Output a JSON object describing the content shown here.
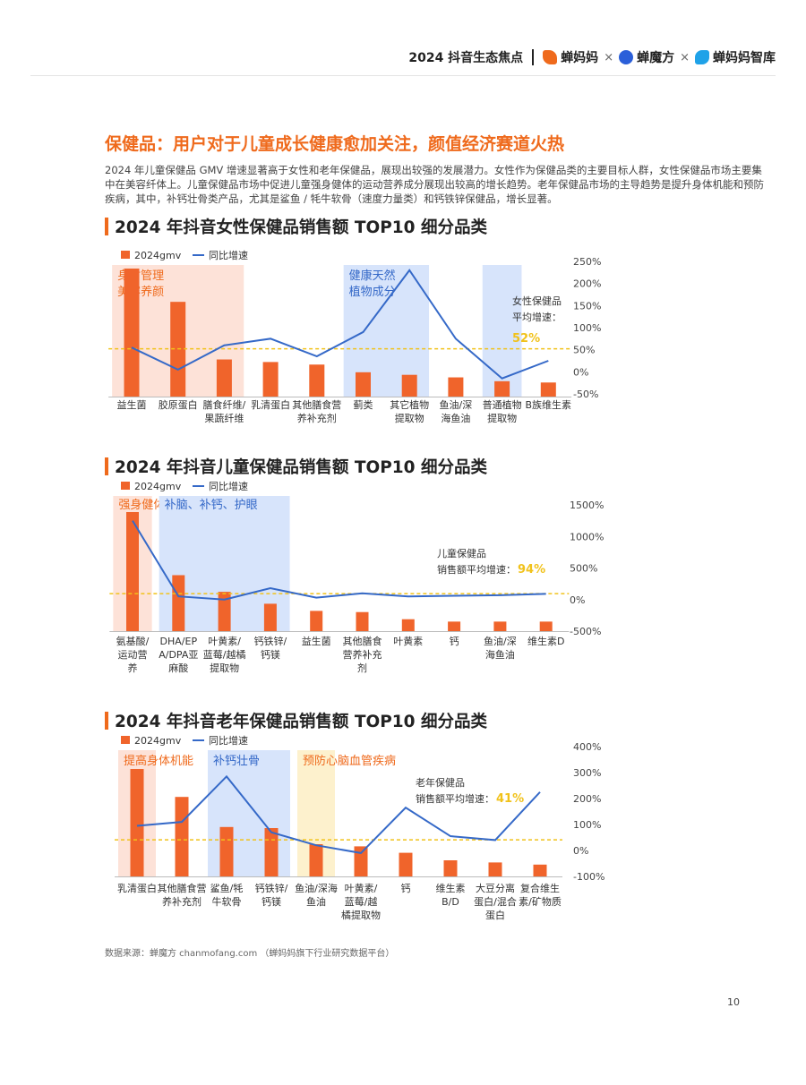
{
  "header": {
    "report": "2024 抖音生态焦点",
    "brands": [
      "蝉妈妈",
      "蝉魔方",
      "蝉妈妈智库"
    ],
    "separator": "×"
  },
  "title": "保健品：用户对于儿童成长健康愈加关注，颜值经济赛道火热",
  "intro": "2024 年儿童保健品 GMV 增速显著高于女性和老年保健品，展现出较强的发展潜力。女性作为保健品类的主要目标人群，女性保健品市场主要集中在美容纤体上。儿童保健品市场中促进儿童强身健体的运动营养成分展现出较高的增长趋势。老年保健品市场的主导趋势是提升身体机能和预防疾病，其中，补钙壮骨类产品，尤其是鲨鱼 / 牦牛软骨（速度力量类）和钙铁锌保健品，增长显著。",
  "source": "数据来源：蝉魔方 chanmofang.com （蝉妈妈旗下行业研究数据平台）",
  "page_number": "10",
  "colors": {
    "accent": "#ef6a1c",
    "bar": "#f0642b",
    "line": "#3569c8",
    "avg": "#f1c21b",
    "zone_orange": "#fde2d8",
    "zone_blue": "#d7e4fb",
    "zone_yellow": "#fdf1cd"
  },
  "chart_data": [
    {
      "type": "bar",
      "title": "2024 年抖音女性保健品销售额 TOP10 细分品类",
      "legend": {
        "bar": "2024gmv",
        "line": "同比增速"
      },
      "categories": [
        "益生菌",
        "胶原蛋白",
        "膳食纤维/果蔬纤维",
        "乳清蛋白",
        "其他膳食营养补充剂",
        "蓟类",
        "其它植物提取物",
        "鱼油/深海鱼油",
        "普通植物提取物",
        "B族维生素"
      ],
      "category_lines": [
        [
          "益生菌"
        ],
        [
          "胶原蛋白"
        ],
        [
          "膳食纤维/",
          "果蔬纤维"
        ],
        [
          "乳清蛋白"
        ],
        [
          "其他膳食营",
          "养补充剂"
        ],
        [
          "蓟类"
        ],
        [
          "其它植物",
          "提取物"
        ],
        [
          "鱼油/深",
          "海鱼油"
        ],
        [
          "普通植物",
          "提取物"
        ],
        [
          "B族维生素"
        ]
      ],
      "bar_relative": [
        1.0,
        0.74,
        0.29,
        0.27,
        0.25,
        0.19,
        0.17,
        0.15,
        0.12,
        0.11
      ],
      "growth": [
        55,
        5,
        60,
        75,
        35,
        90,
        230,
        75,
        -15,
        25
      ],
      "y2_ticks": [
        "250%",
        "200%",
        "150%",
        "100%",
        "50%",
        "0%",
        "-50%"
      ],
      "y2_range": [
        -50,
        250
      ],
      "average": {
        "value": 52,
        "label_lines": [
          "女性保健品",
          "平均增速："
        ],
        "value_label": "52%"
      },
      "zones": [
        {
          "from": 0,
          "to": 2,
          "color": "orange",
          "label_lines": [
            "身材管理",
            "美容养颜"
          ],
          "label_color": "orange"
        },
        {
          "from": 5,
          "to": 6,
          "color": "blue",
          "label_lines": [
            "健康天然",
            "植物成分"
          ],
          "label_color": "blue"
        },
        {
          "from": 8,
          "to": 8,
          "color": "blue",
          "label_lines": [],
          "label_color": "blue"
        }
      ]
    },
    {
      "type": "bar",
      "title": "2024 年抖音儿童保健品销售额 TOP10 细分品类",
      "legend": {
        "bar": "2024gmv",
        "line": "同比增速"
      },
      "categories": [
        "氨基酸/运动营养",
        "DHA/EPA/DPA亚麻酸",
        "叶黄素/蓝莓/越橘提取物",
        "钙铁锌/钙镁",
        "益生菌",
        "其他膳食营养补充剂",
        "叶黄素",
        "钙",
        "鱼油/深海鱼油",
        "维生素D"
      ],
      "category_lines": [
        [
          "氨基酸/",
          "运动营",
          "养"
        ],
        [
          "DHA/EP",
          "A/DPA亚",
          "麻酸"
        ],
        [
          "叶黄素/",
          "蓝莓/越橘",
          "提取物"
        ],
        [
          "钙铁锌/",
          "钙镁"
        ],
        [
          "益生菌"
        ],
        [
          "其他膳食",
          "营养补充",
          "剂"
        ],
        [
          "叶黄素"
        ],
        [
          "钙"
        ],
        [
          "鱼油/深",
          "海鱼油"
        ],
        [
          "维生素D"
        ]
      ],
      "bar_relative": [
        1.0,
        0.47,
        0.33,
        0.23,
        0.17,
        0.16,
        0.1,
        0.08,
        0.08,
        0.08
      ],
      "growth": [
        1250,
        50,
        0,
        180,
        30,
        100,
        50,
        60,
        70,
        90
      ],
      "y2_ticks": [
        "1500%",
        "1000%",
        "500%",
        "0%",
        "-500%"
      ],
      "y2_range": [
        -500,
        1500
      ],
      "average": {
        "value": 94,
        "label_lines": [
          "儿童保健品",
          "销售额平均增速："
        ],
        "value_label": "94%"
      },
      "zones": [
        {
          "from": 0,
          "to": 0,
          "color": "orange",
          "label_lines": [
            "强身健体"
          ],
          "label_color": "orange"
        },
        {
          "from": 1,
          "to": 3,
          "color": "blue",
          "label_lines": [
            "补脑、补钙、护眼"
          ],
          "label_color": "blue"
        }
      ]
    },
    {
      "type": "bar",
      "title": "2024 年抖音老年保健品销售额 TOP10 细分品类",
      "legend": {
        "bar": "2024gmv",
        "line": "同比增速"
      },
      "categories": [
        "乳清蛋白",
        "其他膳食营养补充剂",
        "鲨鱼/牦牛软骨",
        "钙铁锌/钙镁",
        "鱼油/深海鱼油",
        "叶黄素/蓝莓/越橘提取物",
        "钙",
        "维生素B/D",
        "大豆分离蛋白/混合蛋白",
        "复合维生素/矿物质"
      ],
      "category_lines": [
        [
          "乳清蛋白"
        ],
        [
          "其他膳食营",
          "养补充剂"
        ],
        [
          "鲨鱼/牦",
          "牛软骨"
        ],
        [
          "钙铁锌/",
          "钙镁"
        ],
        [
          "鱼油/深海",
          "鱼油"
        ],
        [
          "叶黄素/",
          "蓝莓/越",
          "橘提取物"
        ],
        [
          "钙"
        ],
        [
          "维生素",
          "B/D"
        ],
        [
          "大豆分离",
          "蛋白/混合",
          "蛋白"
        ],
        [
          "复合维生",
          "素/矿物质"
        ]
      ],
      "bar_relative": [
        1.0,
        0.74,
        0.46,
        0.45,
        0.3,
        0.28,
        0.22,
        0.15,
        0.13,
        0.11
      ],
      "growth": [
        95,
        110,
        285,
        70,
        20,
        -10,
        165,
        55,
        40,
        225
      ],
      "y2_ticks": [
        "400%",
        "300%",
        "200%",
        "100%",
        "0%",
        "-100%"
      ],
      "y2_range": [
        -100,
        400
      ],
      "average": {
        "value": 41,
        "label_lines": [
          "老年保健品",
          "销售额平均增速："
        ],
        "value_label": "41%"
      },
      "zones": [
        {
          "from": 0,
          "to": 0,
          "color": "orange",
          "label_lines": [
            "提高身体机能"
          ],
          "label_color": "orange"
        },
        {
          "from": 2,
          "to": 3,
          "color": "blue",
          "label_lines": [
            "补钙壮骨"
          ],
          "label_color": "blue"
        },
        {
          "from": 4,
          "to": 4,
          "color": "yellow",
          "label_lines": [
            "预防心脑血管疾病"
          ],
          "label_color": "orange"
        }
      ]
    }
  ]
}
